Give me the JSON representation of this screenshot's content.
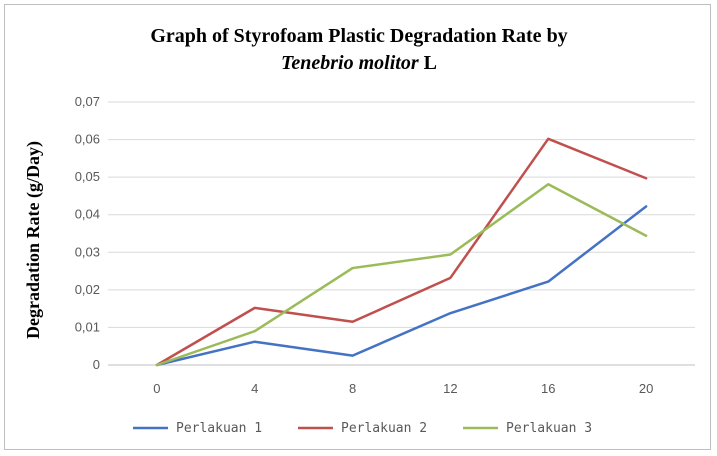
{
  "chart_data": {
    "type": "line",
    "title": "Graph  of Styrofoam Plastic Degradation  Rate by",
    "title_line2_italic": "Tenebrio molitor",
    "title_line2_suffix": " L",
    "ylabel": "Degradation Rate  (g/Day)",
    "xlabel": "",
    "categories": [
      "0",
      "4",
      "8",
      "12",
      "16",
      "20"
    ],
    "ylim": [
      0,
      0.07
    ],
    "yticks": [
      "0",
      "0,01",
      "0,02",
      "0,03",
      "0,04",
      "0,05",
      "0,06",
      "0,07"
    ],
    "grid": true,
    "legend_position": "bottom",
    "series": [
      {
        "name": "Perlakuan 1",
        "color": "#4472C4",
        "values": [
          0,
          0.0062,
          0.0025,
          0.0138,
          0.0222,
          0.0422
        ]
      },
      {
        "name": "Perlakuan 2",
        "color": "#C0504D",
        "values": [
          0,
          0.0152,
          0.0115,
          0.0232,
          0.0602,
          0.0497
        ]
      },
      {
        "name": "Perlakuan 3",
        "color": "#9BBB59",
        "values": [
          0,
          0.009,
          0.0258,
          0.0294,
          0.0481,
          0.0344
        ]
      }
    ]
  }
}
